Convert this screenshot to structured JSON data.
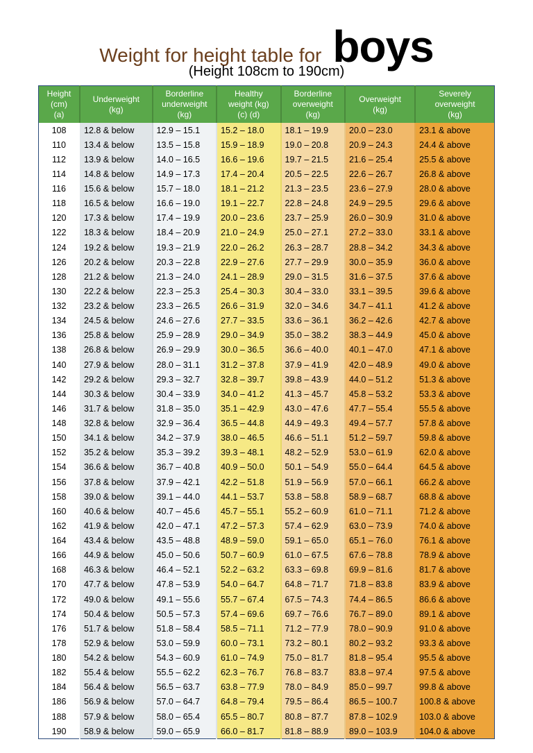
{
  "title": {
    "main": "Weight for height table for",
    "big": "boys",
    "sub": "(Height 108cm to 190cm)",
    "main_color": "#6b3f1d",
    "big_color": "#000000",
    "main_fontsize": 28,
    "big_fontsize": 64,
    "sub_fontsize": 20
  },
  "table": {
    "type": "table",
    "header_bg": "#5aa84a",
    "header_fg": "#ffffff",
    "border_color": "#2a4a7a",
    "columns": [
      {
        "label": "Height\n(cm)\n(a)",
        "bg": "#ffffff"
      },
      {
        "label": "Underweight\n(kg)",
        "bg": "#e0e5e8"
      },
      {
        "label": "Borderline\nunderweight\n(kg)",
        "bg": "#f0f3f5"
      },
      {
        "label": "Healthy\nweight (kg)\n(c)      (d)",
        "bg": "#f6e985"
      },
      {
        "label": "Borderline\noverweight\n(kg)",
        "bg": "#f5d9a6"
      },
      {
        "label": "Overweight\n(kg)",
        "bg": "#f1b96a"
      },
      {
        "label": "Severely\noverweight\n(kg)",
        "bg": "#eda43a"
      }
    ],
    "rows": [
      [
        "108",
        "12.8 & below",
        "12.9 – 15.1",
        "15.2 – 18.0",
        "18.1 – 19.9",
        "20.0 – 23.0",
        "23.1 & above"
      ],
      [
        "110",
        "13.4 & below",
        "13.5 – 15.8",
        "15.9 – 18.9",
        "19.0 – 20.8",
        "20.9 – 24.3",
        "24.4 & above"
      ],
      [
        "112",
        "13.9 & below",
        "14.0 – 16.5",
        "16.6 – 19.6",
        "19.7 – 21.5",
        "21.6 – 25.4",
        "25.5 & above"
      ],
      [
        "114",
        "14.8 & below",
        "14.9 – 17.3",
        "17.4 – 20.4",
        "20.5 – 22.5",
        "22.6 – 26.7",
        "26.8 & above"
      ],
      [
        "116",
        "15.6 & below",
        "15.7 – 18.0",
        "18.1 – 21.2",
        "21.3 – 23.5",
        "23.6 – 27.9",
        "28.0 & above"
      ],
      [
        "118",
        "16.5 & below",
        "16.6 – 19.0",
        "19.1 – 22.7",
        "22.8 – 24.8",
        "24.9 – 29.5",
        "29.6 & above"
      ],
      [
        "120",
        "17.3 & below",
        "17.4 – 19.9",
        "20.0 – 23.6",
        "23.7 – 25.9",
        "26.0 – 30.9",
        "31.0 & above"
      ],
      [
        "122",
        "18.3 & below",
        "18.4 – 20.9",
        "21.0 – 24.9",
        "25.0 – 27.1",
        "27.2 – 33.0",
        "33.1 & above"
      ],
      [
        "124",
        "19.2 & below",
        "19.3 – 21.9",
        "22.0 – 26.2",
        "26.3 – 28.7",
        "28.8 – 34.2",
        "34.3 & above"
      ],
      [
        "126",
        "20.2 & below",
        "20.3 – 22.8",
        "22.9 – 27.6",
        "27.7 – 29.9",
        "30.0 – 35.9",
        "36.0 & above"
      ],
      [
        "128",
        "21.2 & below",
        "21.3 – 24.0",
        "24.1 – 28.9",
        "29.0 – 31.5",
        "31.6 – 37.5",
        "37.6 & above"
      ],
      [
        "130",
        "22.2 & below",
        "22.3 – 25.3",
        "25.4 – 30.3",
        "30.4 – 33.0",
        "33.1 – 39.5",
        "39.6 & above"
      ],
      [
        "132",
        "23.2 & below",
        "23.3 – 26.5",
        "26.6 – 31.9",
        "32.0 – 34.6",
        "34.7 – 41.1",
        "41.2 & above"
      ],
      [
        "134",
        "24.5 & below",
        "24.6 – 27.6",
        "27.7 – 33.5",
        "33.6 – 36.1",
        "36.2 – 42.6",
        "42.7 & above"
      ],
      [
        "136",
        "25.8 & below",
        "25.9 – 28.9",
        "29.0 – 34.9",
        "35.0 – 38.2",
        "38.3 – 44.9",
        "45.0 & above"
      ],
      [
        "138",
        "26.8 & below",
        "26.9 – 29.9",
        "30.0 – 36.5",
        "36.6 – 40.0",
        "40.1 – 47.0",
        "47.1 & above"
      ],
      [
        "140",
        "27.9 & below",
        "28.0 – 31.1",
        "31.2 – 37.8",
        "37.9 – 41.9",
        "42.0 – 48.9",
        "49.0 & above"
      ],
      [
        "142",
        "29.2 & below",
        "29.3 – 32.7",
        "32.8 – 39.7",
        "39.8 – 43.9",
        "44.0 – 51.2",
        "51.3 & above"
      ],
      [
        "144",
        "30.3 & below",
        "30.4 – 33.9",
        "34.0 – 41.2",
        "41.3 – 45.7",
        "45.8 – 53.2",
        "53.3 & above"
      ],
      [
        "146",
        "31.7 & below",
        "31.8 – 35.0",
        "35.1 – 42.9",
        "43.0 – 47.6",
        "47.7 – 55.4",
        "55.5 & above"
      ],
      [
        "148",
        "32.8 & below",
        "32.9 – 36.4",
        "36.5 – 44.8",
        "44.9 – 49.3",
        "49.4 – 57.7",
        "57.8 & above"
      ],
      [
        "150",
        "34.1 & below",
        "34.2 – 37.9",
        "38.0 – 46.5",
        "46.6 – 51.1",
        "51.2 – 59.7",
        "59.8 & above"
      ],
      [
        "152",
        "35.2 & below",
        "35.3 – 39.2",
        "39.3 – 48.1",
        "48.2 – 52.9",
        "53.0 – 61.9",
        "62.0 & above"
      ],
      [
        "154",
        "36.6 & below",
        "36.7 – 40.8",
        "40.9 – 50.0",
        "50.1 – 54.9",
        "55.0 – 64.4",
        "64.5 & above"
      ],
      [
        "156",
        "37.8 & below",
        "37.9 – 42.1",
        "42.2 – 51.8",
        "51.9 – 56.9",
        "57.0 – 66.1",
        "66.2 & above"
      ],
      [
        "158",
        "39.0 & below",
        "39.1 – 44.0",
        "44.1 – 53.7",
        "53.8 – 58.8",
        "58.9 – 68.7",
        "68.8 & above"
      ],
      [
        "160",
        "40.6 & below",
        "40.7 – 45.6",
        "45.7 – 55.1",
        "55.2 – 60.9",
        "61.0 – 71.1",
        "71.2 & above"
      ],
      [
        "162",
        "41.9 & below",
        "42.0 – 47.1",
        "47.2 – 57.3",
        "57.4 – 62.9",
        "63.0 – 73.9",
        "74.0 & above"
      ],
      [
        "164",
        "43.4 & below",
        "43.5 – 48.8",
        "48.9 – 59.0",
        "59.1 – 65.0",
        "65.1 – 76.0",
        "76.1 & above"
      ],
      [
        "166",
        "44.9 & below",
        "45.0 – 50.6",
        "50.7 – 60.9",
        "61.0 – 67.5",
        "67.6 – 78.8",
        "78.9 & above"
      ],
      [
        "168",
        "46.3 & below",
        "46.4 – 52.1",
        "52.2 – 63.2",
        "63.3 – 69.8",
        "69.9 – 81.6",
        "81.7 & above"
      ],
      [
        "170",
        "47.7 & below",
        "47.8 – 53.9",
        "54.0 – 64.7",
        "64.8 – 71.7",
        "71.8 – 83.8",
        "83.9 & above"
      ],
      [
        "172",
        "49.0 & below",
        "49.1 – 55.6",
        "55.7 – 67.4",
        "67.5 – 74.3",
        "74.4 – 86.5",
        "86.6 & above"
      ],
      [
        "174",
        "50.4 & below",
        "50.5 – 57.3",
        "57.4 – 69.6",
        "69.7 – 76.6",
        "76.7 – 89.0",
        "89.1 & above"
      ],
      [
        "176",
        "51.7 & below",
        "51.8 – 58.4",
        "58.5 – 71.1",
        "71.2 – 77.9",
        "78.0 – 90.9",
        "91.0 & above"
      ],
      [
        "178",
        "52.9 & below",
        "53.0 – 59.9",
        "60.0 – 73.1",
        "73.2 – 80.1",
        "80.2 – 93.2",
        "93.3 & above"
      ],
      [
        "180",
        "54.2 & below",
        "54.3 – 60.9",
        "61.0 – 74.9",
        "75.0 – 81.7",
        "81.8 – 95.4",
        "95.5 & above"
      ],
      [
        "182",
        "55.4 & below",
        "55.5 – 62.2",
        "62.3 – 76.7",
        "76.8 – 83.7",
        "83.8 – 97.4",
        "97.5 & above"
      ],
      [
        "184",
        "56.4 & below",
        "56.5 – 63.7",
        "63.8 – 77.9",
        "78.0 – 84.9",
        "85.0 – 99.7",
        "99.8 & above"
      ],
      [
        "186",
        "56.9 & below",
        "57.0 – 64.7",
        "64.8 – 79.4",
        "79.5 – 86.4",
        "86.5 – 100.7",
        "100.8 & above"
      ],
      [
        "188",
        "57.9 & below",
        "58.0 – 65.4",
        "65.5 – 80.7",
        "80.8 – 87.7",
        "87.8 – 102.9",
        "103.0 & above"
      ],
      [
        "190",
        "58.9 & below",
        "59.0 – 65.9",
        "66.0 – 81.7",
        "81.8 – 88.9",
        "89.0 – 103.9",
        "104.0 & above"
      ]
    ]
  }
}
